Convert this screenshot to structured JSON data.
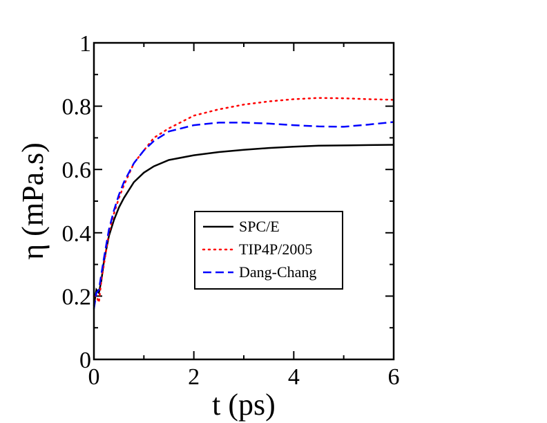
{
  "chart_data": {
    "type": "line",
    "title": "",
    "xlabel": "t (ps)",
    "ylabel": "η (mPa.s)",
    "xlim": [
      0,
      6
    ],
    "ylim": [
      0,
      1
    ],
    "x_ticks": [
      "0",
      "2",
      "4",
      "6"
    ],
    "y_ticks": [
      "0",
      "0.2",
      "0.4",
      "0.6",
      "0.8",
      "1"
    ],
    "grid": false,
    "legend_position": "center-right",
    "series": [
      {
        "name": "SPC/E",
        "color": "#000000",
        "dash": "solid",
        "x": [
          0,
          0.05,
          0.1,
          0.15,
          0.2,
          0.3,
          0.4,
          0.5,
          0.6,
          0.8,
          1.0,
          1.2,
          1.5,
          2.0,
          2.5,
          3.0,
          3.5,
          4.0,
          4.5,
          5.0,
          5.5,
          6.0
        ],
        "y": [
          0.17,
          0.22,
          0.21,
          0.25,
          0.31,
          0.39,
          0.44,
          0.48,
          0.51,
          0.56,
          0.59,
          0.61,
          0.63,
          0.645,
          0.655,
          0.662,
          0.668,
          0.672,
          0.675,
          0.676,
          0.677,
          0.678
        ]
      },
      {
        "name": "TIP4P/2005",
        "color": "#ff0000",
        "dash": "dotted",
        "x": [
          0,
          0.05,
          0.1,
          0.15,
          0.2,
          0.3,
          0.4,
          0.5,
          0.6,
          0.8,
          1.0,
          1.2,
          1.5,
          2.0,
          2.5,
          3.0,
          3.5,
          4.0,
          4.5,
          5.0,
          5.5,
          6.0
        ],
        "y": [
          0.2,
          0.2,
          0.18,
          0.25,
          0.3,
          0.4,
          0.46,
          0.51,
          0.55,
          0.62,
          0.66,
          0.7,
          0.73,
          0.77,
          0.79,
          0.805,
          0.815,
          0.822,
          0.826,
          0.825,
          0.822,
          0.82
        ]
      },
      {
        "name": "Dang-Chang",
        "color": "#0000ff",
        "dash": "dashed",
        "x": [
          0,
          0.05,
          0.1,
          0.15,
          0.2,
          0.3,
          0.4,
          0.5,
          0.6,
          0.8,
          1.0,
          1.2,
          1.5,
          2.0,
          2.5,
          3.0,
          3.5,
          4.0,
          4.5,
          5.0,
          5.5,
          6.0
        ],
        "y": [
          0.16,
          0.21,
          0.22,
          0.27,
          0.32,
          0.41,
          0.47,
          0.52,
          0.56,
          0.62,
          0.66,
          0.69,
          0.72,
          0.74,
          0.748,
          0.748,
          0.745,
          0.74,
          0.736,
          0.735,
          0.742,
          0.75
        ]
      }
    ]
  }
}
